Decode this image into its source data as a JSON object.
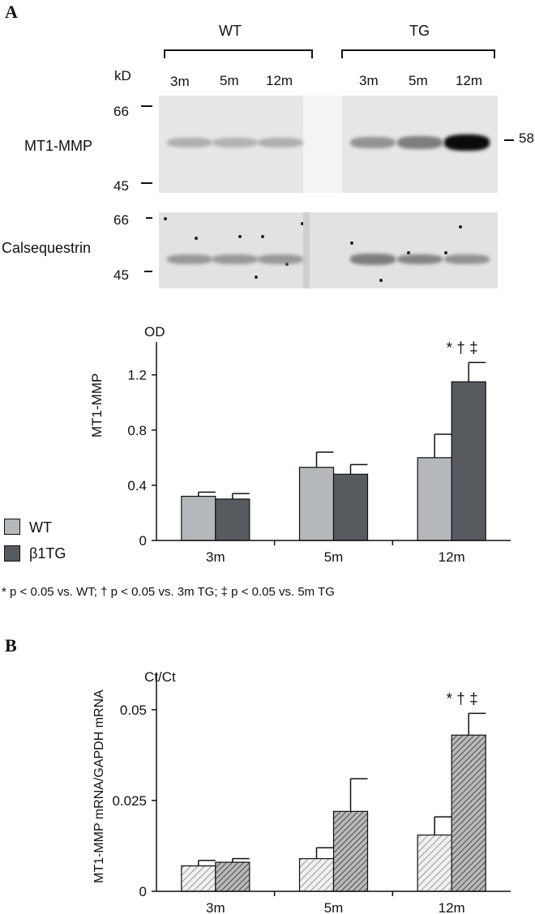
{
  "panels": {
    "a": "A",
    "b": "B"
  },
  "blot": {
    "groups": [
      "WT",
      "TG"
    ],
    "lanes": [
      "3m",
      "5m",
      "12m",
      "3m",
      "5m",
      "12m"
    ],
    "kd_label": "kD",
    "mt1": {
      "label": "MT1-MMP",
      "marker_top": "66",
      "marker_bottom": "45",
      "marker_right": "58",
      "intensity": [
        0.3,
        0.28,
        0.3,
        0.45,
        0.55,
        1.0
      ]
    },
    "calseq": {
      "label": "Calsequestrin",
      "marker_top": "66",
      "marker_bottom": "45",
      "intensity": [
        0.42,
        0.42,
        0.42,
        0.55,
        0.52,
        0.45
      ]
    }
  },
  "footnote": "* p < 0.05 vs. WT; † p < 0.05 vs. 3m TG; ‡ p < 0.05 vs. 5m TG",
  "legend": {
    "wt": "WT",
    "tg": "β1TG"
  },
  "colors": {
    "wt_fill": "#b4b8bb",
    "tg_fill": "#575b5f",
    "axis": "#111111",
    "hatch_light": "#dddddd",
    "hatch_dark": "#a9a9a9"
  },
  "chart_data": [
    {
      "type": "bar",
      "ylabel": "MT1-MMP",
      "unit_label": "OD",
      "categories": [
        "3m",
        "5m",
        "12m"
      ],
      "yticks": [
        "0",
        "0.4",
        "0.8",
        "1.2"
      ],
      "ylim": [
        0,
        1.38
      ],
      "series": [
        {
          "name": "WT",
          "values": [
            0.32,
            0.53,
            0.6
          ],
          "errors": [
            0.03,
            0.11,
            0.17
          ]
        },
        {
          "name": "β1TG",
          "values": [
            0.3,
            0.48,
            1.15
          ],
          "errors": [
            0.04,
            0.07,
            0.14
          ]
        }
      ],
      "annotation": "* † ‡",
      "annotation_category": "12m"
    },
    {
      "type": "bar",
      "ylabel": "MT1-MMP mRNA/GAPDH mRNA",
      "unit_label": "Ct/Ct",
      "categories": [
        "3m",
        "5m",
        "12m"
      ],
      "yticks": [
        "0",
        "0.025",
        "0.05"
      ],
      "ylim": [
        0,
        0.058
      ],
      "series": [
        {
          "values": [
            0.007,
            0.009,
            0.0155
          ],
          "errors": [
            0.0015,
            0.003,
            0.005
          ]
        },
        {
          "values": [
            0.008,
            0.022,
            0.043
          ],
          "errors": [
            0.001,
            0.009,
            0.006
          ]
        }
      ],
      "annotation": "* † ‡",
      "annotation_category": "12m"
    }
  ]
}
